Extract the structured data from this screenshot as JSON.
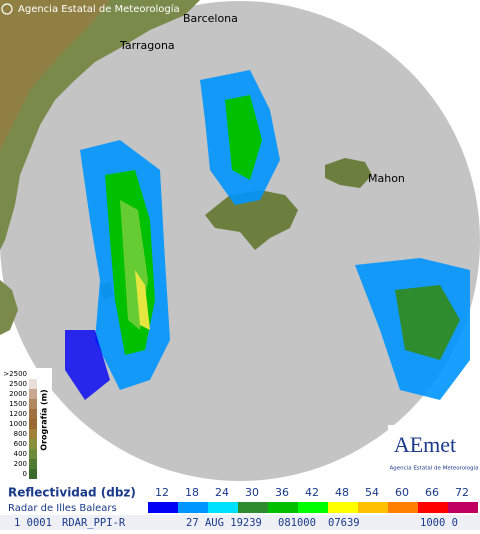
{
  "header": {
    "copyright": "Agencia Estatal de Meteorología"
  },
  "places": [
    "Barcelona",
    "Tarragona",
    "Mahon"
  ],
  "orography": {
    "title": "Orografía (m)",
    "labels": [
      ">2500",
      "2500",
      "2000",
      "1500",
      "1200",
      "1000",
      "800",
      "600",
      "400",
      "200",
      "0"
    ]
  },
  "logo": {
    "brand": "AEmet",
    "name": "Agencia Estatal de Meteorología"
  },
  "legend": {
    "title": "Reflectividad (dbz)",
    "subtitle": "Radar de Illes Balears",
    "levels": [
      {
        "label": "12",
        "color": "#0000f6"
      },
      {
        "label": "18",
        "color": "#0096ff"
      },
      {
        "label": "24",
        "color": "#00e1ff"
      },
      {
        "label": "30",
        "color": "#2e8b2e"
      },
      {
        "label": "36",
        "color": "#00c000"
      },
      {
        "label": "42",
        "color": "#00ff00"
      },
      {
        "label": "48",
        "color": "#ffff00"
      },
      {
        "label": "54",
        "color": "#ffc000"
      },
      {
        "label": "60",
        "color": "#ff8000"
      },
      {
        "label": "66",
        "color": "#ff0000"
      },
      {
        "label": "72",
        "color": "#c00060"
      }
    ]
  },
  "status": [
    "1 0001",
    "RDAR_PPI-R",
    "27 AUG 19239",
    "081000",
    "07639",
    "1000 0"
  ]
}
